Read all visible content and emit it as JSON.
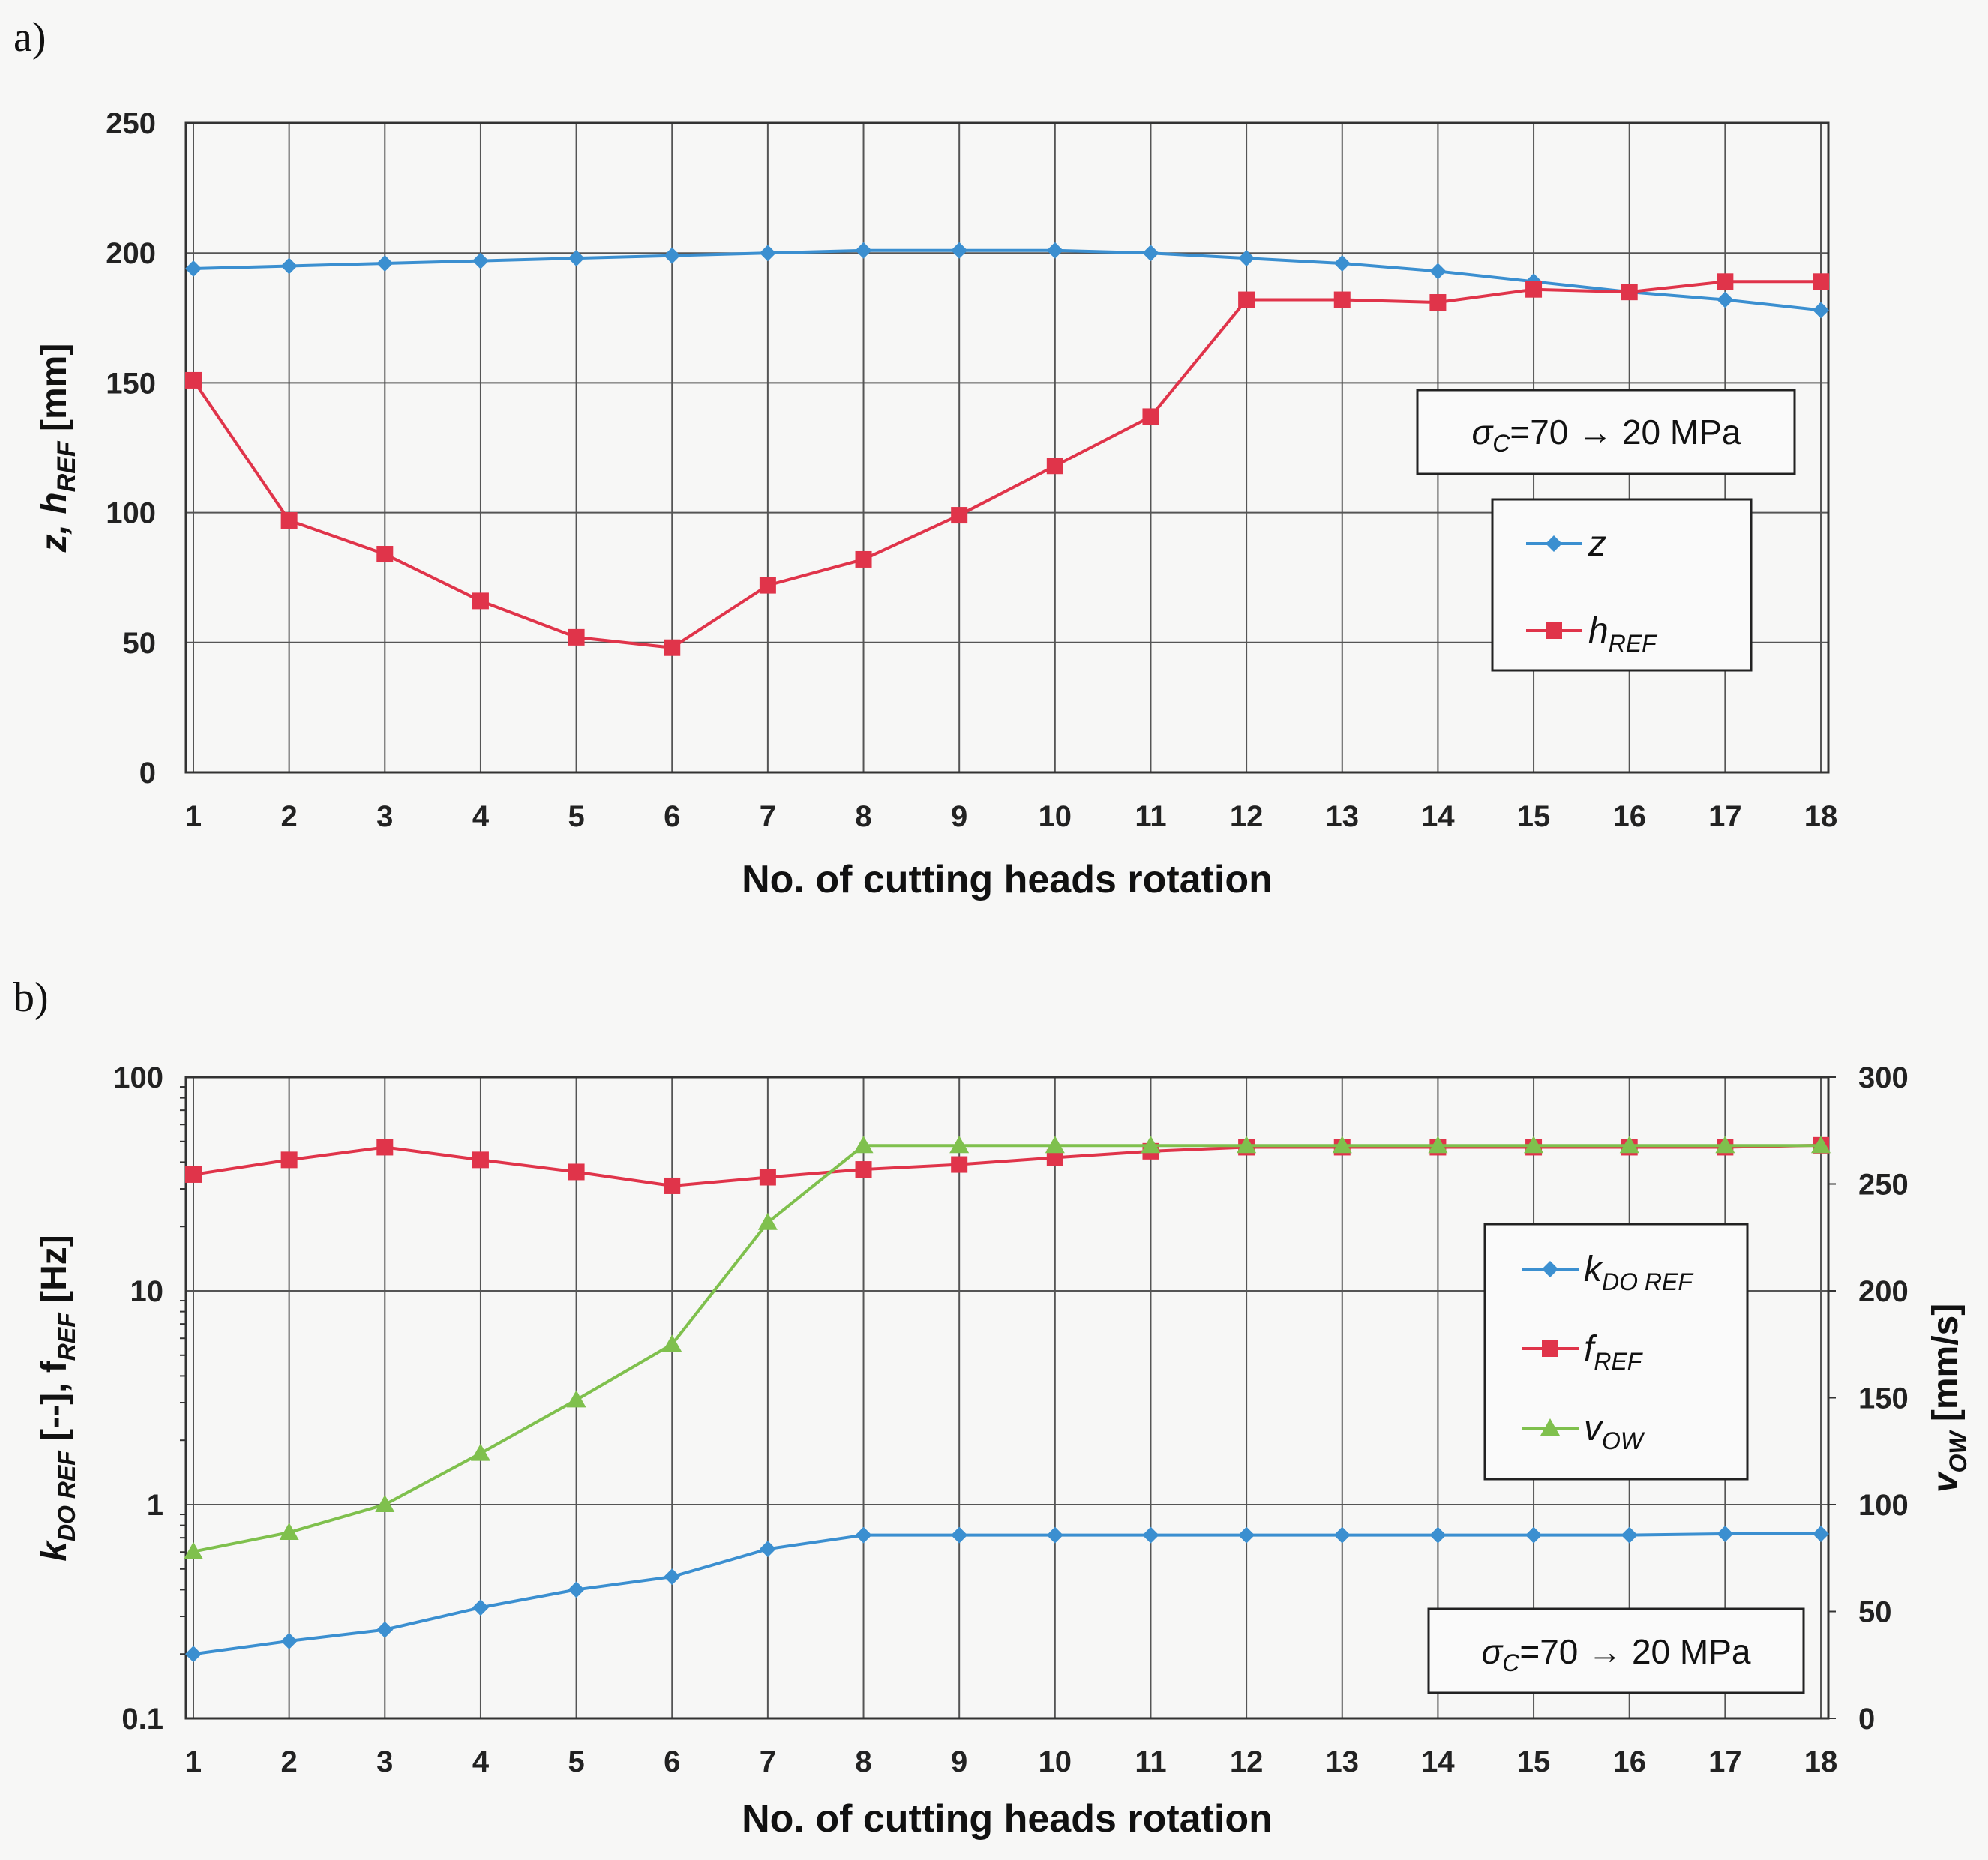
{
  "chart_data": [
    {
      "panel_label": "a)",
      "type": "line",
      "x": [
        1,
        2,
        3,
        4,
        5,
        6,
        7,
        8,
        9,
        10,
        11,
        12,
        13,
        14,
        15,
        16,
        17,
        18
      ],
      "x_tick_labels": [
        "1",
        "2",
        "3",
        "4",
        "5",
        "6",
        "7",
        "8",
        "9",
        "10",
        "11",
        "12",
        "13",
        "14",
        "15",
        "16",
        "17",
        "18"
      ],
      "xlabel": "No. of cutting heads rotation",
      "ylabel_main": "z,  h",
      "ylabel_sub": "REF",
      "ylabel_unit": "  [mm]",
      "ylim": [
        0,
        250
      ],
      "y_ticks": [
        0,
        50,
        100,
        150,
        200,
        250
      ],
      "grid": true,
      "annotation_pre": "σ",
      "annotation_sub": "C",
      "annotation_post": "=70 → 20 MPa",
      "legend_position": "right",
      "series": [
        {
          "name": "z",
          "sub": "",
          "color": "#3b8fd0",
          "marker": "diamond",
          "values": [
            194,
            195,
            196,
            197,
            198,
            199,
            200,
            201,
            201,
            201,
            200,
            198,
            196,
            193,
            189,
            185,
            182,
            178
          ]
        },
        {
          "name": "h",
          "sub": "REF",
          "color": "#e0344a",
          "marker": "square",
          "values": [
            151,
            97,
            84,
            66,
            52,
            48,
            72,
            82,
            99,
            118,
            137,
            182,
            182,
            181,
            186,
            185,
            189,
            189
          ]
        }
      ]
    },
    {
      "panel_label": "b)",
      "type": "line",
      "x": [
        1,
        2,
        3,
        4,
        5,
        6,
        7,
        8,
        9,
        10,
        11,
        12,
        13,
        14,
        15,
        16,
        17,
        18
      ],
      "x_tick_labels": [
        "1",
        "2",
        "3",
        "4",
        "5",
        "6",
        "7",
        "8",
        "9",
        "10",
        "11",
        "12",
        "13",
        "14",
        "15",
        "16",
        "17",
        "18"
      ],
      "xlabel": "No. of cutting heads rotation",
      "ylabel_left": {
        "parts": [
          [
            "k",
            ""
          ],
          [
            "DO REF",
            "sub"
          ],
          [
            " [--],  f",
            ""
          ],
          [
            "REF",
            "sub"
          ],
          [
            "  [Hz]",
            ""
          ]
        ]
      },
      "ylabel_right": {
        "parts": [
          [
            "v",
            ""
          ],
          [
            "OW",
            "sub"
          ],
          [
            "  [mm/s]",
            ""
          ]
        ]
      },
      "y_left_scale": "log",
      "y_left_lim": [
        0.1,
        100
      ],
      "y_left_tick_labels": [
        "0.1",
        "1",
        "10",
        "100"
      ],
      "y_right_lim": [
        0,
        300
      ],
      "y_right_ticks": [
        0,
        50,
        100,
        150,
        200,
        250,
        300
      ],
      "grid": true,
      "annotation_pre": "σ",
      "annotation_sub": "C",
      "annotation_post": "=70 → 20 MPa",
      "legend_position": "right",
      "series": [
        {
          "name": "k",
          "sub": "DO REF",
          "axis": "left",
          "color": "#3b8fd0",
          "marker": "diamond",
          "values": [
            0.2,
            0.23,
            0.26,
            0.33,
            0.4,
            0.46,
            0.62,
            0.72,
            0.72,
            0.72,
            0.72,
            0.72,
            0.72,
            0.72,
            0.72,
            0.72,
            0.73,
            0.73
          ]
        },
        {
          "name": "f",
          "sub": "REF",
          "axis": "left",
          "color": "#e0344a",
          "marker": "square",
          "values": [
            35,
            41,
            47,
            41,
            36,
            31,
            34,
            37,
            39,
            42,
            45,
            47,
            47,
            47,
            47,
            47,
            47,
            48
          ]
        },
        {
          "name": "v",
          "sub": "OW",
          "axis": "right",
          "color": "#7fc04d",
          "marker": "triangle",
          "values": [
            78,
            87,
            100,
            124,
            149,
            175,
            232,
            268,
            268,
            268,
            268,
            268,
            268,
            268,
            268,
            268,
            268,
            268
          ]
        }
      ]
    }
  ]
}
